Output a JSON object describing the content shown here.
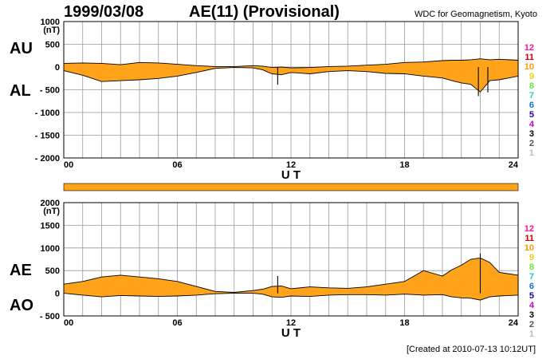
{
  "header": {
    "date": "1999/03/08",
    "title": "AE(11) (Provisional)",
    "credit": "WDC for Geomagnetism, Kyoto",
    "created": "[Created at 2010-07-13 10:12UT]"
  },
  "fill_color": "#ffa31a",
  "stations_legend": {
    "numbers": [
      "12",
      "11",
      "10",
      "9",
      "8",
      "7",
      "6",
      "5",
      "4",
      "3",
      "2",
      "1"
    ],
    "colors": [
      "#ff1493",
      "#d40000",
      "#ff9900",
      "#f0d000",
      "#66ee33",
      "#22cccc",
      "#1570e0",
      "#2000a0",
      "#cc00cc",
      "#000000",
      "#555555",
      "#bbbbbb"
    ]
  },
  "chart_data": [
    {
      "type": "area",
      "series_labels": [
        "AU",
        "AL"
      ],
      "unit_label": "(nT)",
      "xlabel": "U T",
      "xticks": [
        "00",
        "06",
        "12",
        "18",
        "24"
      ],
      "xlim": [
        0,
        24
      ],
      "ylim": [
        -2000,
        1000
      ],
      "yticks": [
        "1000",
        "500",
        "0",
        "- 500",
        "- 1000",
        "- 1500",
        "- 2000"
      ],
      "ytick_values": [
        1000,
        500,
        0,
        -500,
        -1000,
        -1500,
        -2000
      ],
      "x": [
        0,
        1,
        2,
        3,
        4,
        5,
        6,
        7,
        8,
        9,
        10,
        10.5,
        11,
        11.5,
        12,
        13,
        14,
        15,
        16,
        17,
        18,
        19,
        20,
        20.5,
        21,
        21.5,
        22,
        22.5,
        23,
        24
      ],
      "AU": [
        80,
        90,
        80,
        50,
        100,
        90,
        60,
        30,
        10,
        10,
        30,
        20,
        -10,
        0,
        -20,
        -10,
        10,
        20,
        40,
        60,
        100,
        110,
        140,
        150,
        150,
        160,
        180,
        160,
        170,
        150
      ],
      "AL": [
        -80,
        -180,
        -320,
        -300,
        -280,
        -250,
        -200,
        -120,
        -30,
        -10,
        -20,
        -60,
        -150,
        -170,
        -120,
        -150,
        -100,
        -80,
        -100,
        -140,
        -150,
        -200,
        -240,
        -300,
        -350,
        -380,
        -550,
        -300,
        -280,
        -200
      ],
      "spikes": [
        {
          "x": 11.3,
          "y": -390
        },
        {
          "x": 21.9,
          "y": -640
        },
        {
          "x": 22.4,
          "y": -560
        }
      ]
    },
    {
      "type": "area",
      "series_labels": [
        "AE",
        "AO"
      ],
      "unit_label": "(nT)",
      "xlabel": "U T",
      "xticks": [
        "00",
        "06",
        "12",
        "18",
        "24"
      ],
      "xlim": [
        0,
        24
      ],
      "ylim": [
        -500,
        2000
      ],
      "yticks": [
        "2000",
        "1500",
        "1000",
        "500",
        "0",
        "- 500"
      ],
      "ytick_values": [
        2000,
        1500,
        1000,
        500,
        0,
        -500
      ],
      "x": [
        0,
        1,
        2,
        3,
        4,
        5,
        6,
        7,
        8,
        9,
        10,
        10.5,
        11,
        11.5,
        12,
        13,
        14,
        15,
        16,
        17,
        18,
        19,
        20,
        20.5,
        21,
        21.5,
        22,
        22.5,
        23,
        24
      ],
      "AE": [
        200,
        260,
        360,
        400,
        360,
        320,
        260,
        150,
        40,
        20,
        60,
        90,
        150,
        160,
        100,
        140,
        120,
        110,
        140,
        200,
        260,
        500,
        380,
        520,
        620,
        750,
        780,
        680,
        460,
        400
      ],
      "AO": [
        0,
        -40,
        -80,
        -50,
        -60,
        -70,
        -60,
        -40,
        -10,
        0,
        0,
        -20,
        -80,
        -90,
        -60,
        -70,
        -40,
        -30,
        -30,
        -40,
        -20,
        -40,
        -30,
        -80,
        -100,
        -110,
        -150,
        -80,
        -60,
        -40
      ],
      "spikes": [
        {
          "x": 11.3,
          "y": 380
        },
        {
          "x": 22.0,
          "y": 880
        }
      ]
    }
  ]
}
